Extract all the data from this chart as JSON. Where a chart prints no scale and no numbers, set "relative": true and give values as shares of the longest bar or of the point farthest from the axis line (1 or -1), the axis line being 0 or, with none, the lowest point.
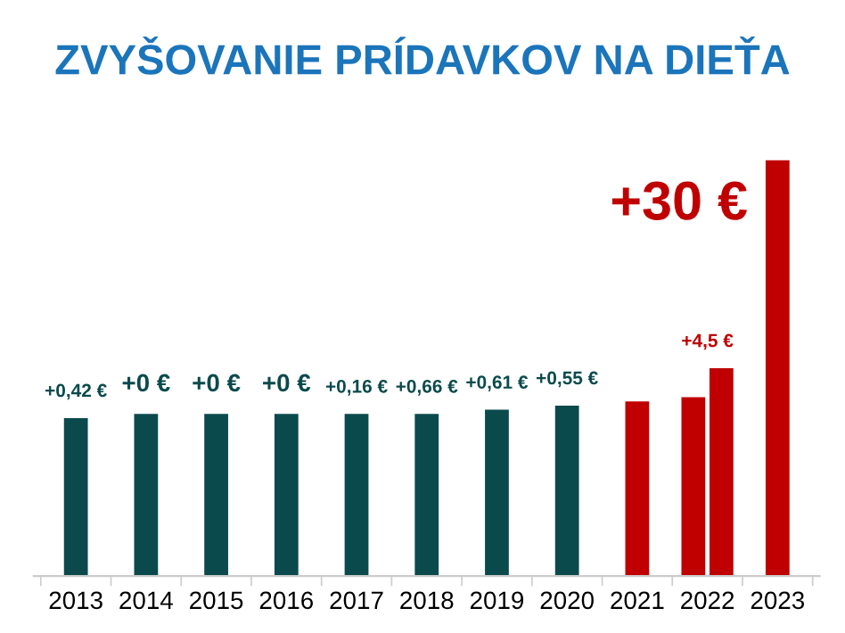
{
  "chart_data": {
    "type": "bar",
    "title": "ZVYŠOVANIE PRÍDAVKOV NA DIEŤA",
    "relative": true,
    "categories": [
      "2013",
      "2014",
      "2015",
      "2016",
      "2017",
      "2018",
      "2019",
      "2020",
      "2021",
      "2022",
      "2023"
    ],
    "series": [
      {
        "colors": [
          "#0b4a4c",
          "#0b4a4c",
          "#0b4a4c",
          "#0b4a4c",
          "#0b4a4c",
          "#0b4a4c",
          "#0b4a4c",
          "#0b4a4c",
          "#c00000",
          "#c00000",
          "#c00000"
        ],
        "values": [
          0.38,
          0.39,
          0.39,
          0.39,
          0.39,
          0.39,
          0.4,
          0.41,
          0.42,
          0.43,
          1
        ]
      },
      {
        "color": "#c00000",
        "values": [
          null,
          null,
          null,
          null,
          null,
          null,
          null,
          null,
          null,
          0.5,
          null
        ]
      }
    ],
    "annotations": [
      {
        "text": "+0,42 €",
        "x": "2013",
        "y": 0.38
      },
      {
        "text": "+0 €",
        "x": "2014",
        "y": 0.39
      },
      {
        "text": "+0 €",
        "x": "2015",
        "y": 0.39
      },
      {
        "text": "+0 €",
        "x": "2016",
        "y": 0.39
      },
      {
        "text": "+0,16 €",
        "x": "2017",
        "y": 0.39
      },
      {
        "text": "+0,66 €",
        "x": "2018",
        "y": 0.39
      },
      {
        "text": "+0,61 €",
        "x": "2019",
        "y": 0.4
      },
      {
        "text": "+0,55 €",
        "x": "2020",
        "y": 0.41
      },
      {
        "text": "+4,5 €",
        "x": "2022",
        "y": 0.5
      },
      {
        "text": "+30 €",
        "x": "2023",
        "y": 1
      }
    ],
    "grid": false,
    "legend": false
  }
}
